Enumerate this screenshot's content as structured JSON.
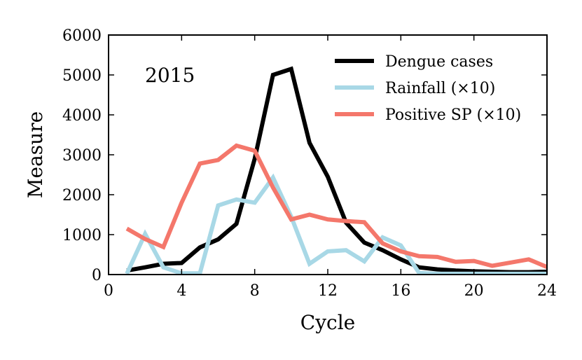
{
  "chart_data": {
    "type": "line",
    "title": "",
    "annotation": "2015",
    "xlabel": "Cycle",
    "ylabel": "Measure",
    "xlim": [
      0,
      24
    ],
    "ylim": [
      0,
      6000
    ],
    "xticks": [
      0,
      4,
      8,
      12,
      16,
      20,
      24
    ],
    "yticks": [
      0,
      1000,
      2000,
      3000,
      4000,
      5000,
      6000
    ],
    "grid": false,
    "legend_position": "top-right",
    "series": [
      {
        "name": "Dengue cases",
        "color": "#000000",
        "x": [
          1,
          2,
          3,
          4,
          5,
          6,
          7,
          8,
          9,
          10,
          11,
          12,
          13,
          14,
          15,
          16,
          17,
          18,
          19,
          20,
          21,
          22,
          23,
          24
        ],
        "values": [
          100,
          180,
          270,
          290,
          680,
          880,
          1270,
          2900,
          5000,
          5150,
          3300,
          2450,
          1300,
          800,
          610,
          380,
          180,
          130,
          100,
          80,
          70,
          60,
          60,
          70
        ]
      },
      {
        "name": "Rainfall (×10)",
        "color": "#a8d8e6",
        "x": [
          1,
          2,
          3,
          4,
          5,
          6,
          7,
          8,
          9,
          10,
          11,
          12,
          13,
          14,
          15,
          16,
          17,
          18,
          19,
          20,
          21,
          22,
          23,
          24
        ],
        "values": [
          20,
          1020,
          180,
          30,
          30,
          1730,
          1880,
          1800,
          2430,
          1450,
          270,
          580,
          610,
          330,
          930,
          730,
          40,
          20,
          20,
          20,
          20,
          20,
          20,
          20
        ]
      },
      {
        "name": "Positive SP (×10)",
        "color": "#f4776b",
        "x": [
          1,
          2,
          3,
          4,
          5,
          6,
          7,
          8,
          9,
          10,
          11,
          12,
          13,
          14,
          15,
          16,
          17,
          18,
          19,
          20,
          21,
          22,
          23,
          24
        ],
        "values": [
          1150,
          890,
          690,
          1800,
          2780,
          2870,
          3230,
          3100,
          2180,
          1380,
          1500,
          1380,
          1340,
          1310,
          780,
          580,
          460,
          440,
          320,
          340,
          220,
          300,
          380,
          190
        ]
      }
    ]
  }
}
